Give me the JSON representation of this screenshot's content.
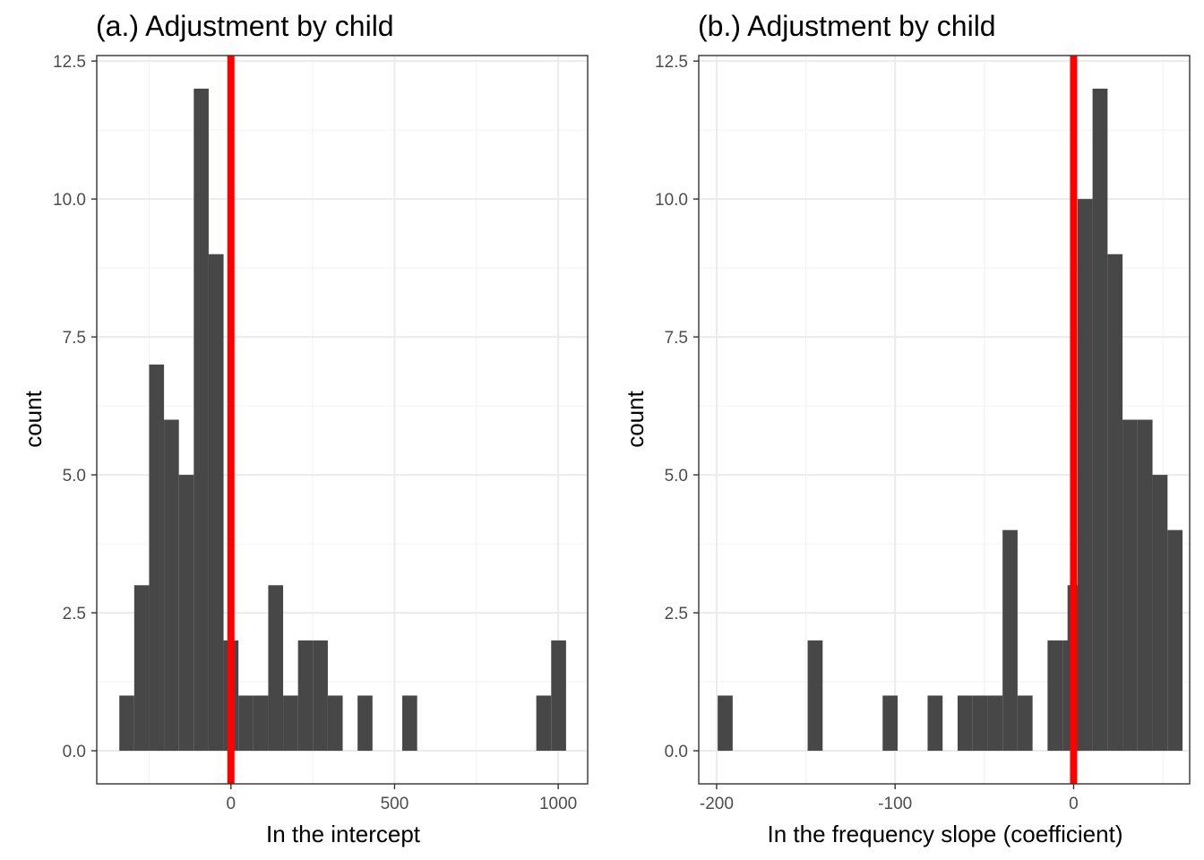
{
  "chart_data": [
    {
      "type": "bar",
      "subtype": "histogram",
      "title": "(a.) Adjustment by child",
      "xlabel": "In the intercept",
      "ylabel": "count",
      "xlim": [
        -410,
        1090
      ],
      "ylim": [
        -0.6,
        12.6
      ],
      "xticks": [
        {
          "value": 0,
          "label": "0"
        },
        {
          "value": 500,
          "label": "500"
        },
        {
          "value": 1000,
          "label": "1000"
        }
      ],
      "yticks": [
        {
          "value": 0,
          "label": "0.0"
        },
        {
          "value": 2.5,
          "label": "2.5"
        },
        {
          "value": 5,
          "label": "5.0"
        },
        {
          "value": 7.5,
          "label": "7.5"
        },
        {
          "value": 10,
          "label": "10.0"
        },
        {
          "value": 12.5,
          "label": "12.5"
        }
      ],
      "bin_width": 45.5,
      "bins": [
        {
          "x0": -341,
          "count": 1
        },
        {
          "x0": -295.5,
          "count": 3
        },
        {
          "x0": -250,
          "count": 7
        },
        {
          "x0": -204.5,
          "count": 6
        },
        {
          "x0": -159,
          "count": 5
        },
        {
          "x0": -113.5,
          "count": 12
        },
        {
          "x0": -68,
          "count": 9
        },
        {
          "x0": -22.5,
          "count": 2
        },
        {
          "x0": 23,
          "count": 1
        },
        {
          "x0": 68.5,
          "count": 1
        },
        {
          "x0": 114,
          "count": 3
        },
        {
          "x0": 159.5,
          "count": 1
        },
        {
          "x0": 205,
          "count": 2
        },
        {
          "x0": 250.5,
          "count": 2
        },
        {
          "x0": 296,
          "count": 1
        },
        {
          "x0": 387,
          "count": 1
        },
        {
          "x0": 523.5,
          "count": 1
        },
        {
          "x0": 933,
          "count": 1
        },
        {
          "x0": 978.5,
          "count": 2
        }
      ],
      "vline": {
        "x": 0,
        "color": "#ff0000"
      },
      "bar_color": "#474747",
      "grid": true
    },
    {
      "type": "bar",
      "subtype": "histogram",
      "title": "(b.) Adjustment by child",
      "xlabel": "In the frequency slope (coefficient)",
      "ylabel": "count",
      "xlim": [
        -210,
        65
      ],
      "ylim": [
        -0.6,
        12.6
      ],
      "xticks": [
        {
          "value": -200,
          "label": "-200"
        },
        {
          "value": -100,
          "label": "-100"
        },
        {
          "value": 0,
          "label": "0"
        }
      ],
      "yticks": [
        {
          "value": 0,
          "label": "0.0"
        },
        {
          "value": 2.5,
          "label": "2.5"
        },
        {
          "value": 5,
          "label": "5.0"
        },
        {
          "value": 7.5,
          "label": "7.5"
        },
        {
          "value": 10,
          "label": "10.0"
        },
        {
          "value": 12.5,
          "label": "12.5"
        }
      ],
      "bin_width": 8.4,
      "bins": [
        {
          "x0": -199.4,
          "count": 1
        },
        {
          "x0": -149.0,
          "count": 2
        },
        {
          "x0": -107.0,
          "count": 1
        },
        {
          "x0": -81.8,
          "count": 1
        },
        {
          "x0": -65.0,
          "count": 1
        },
        {
          "x0": -56.6,
          "count": 1
        },
        {
          "x0": -48.2,
          "count": 1
        },
        {
          "x0": -39.8,
          "count": 4
        },
        {
          "x0": -31.4,
          "count": 1
        },
        {
          "x0": -14.6,
          "count": 2
        },
        {
          "x0": -6.2,
          "count": 2
        },
        {
          "x0": -3.4,
          "count": 3
        },
        {
          "x0": 2.2,
          "count": 10
        },
        {
          "x0": 10.6,
          "count": 12
        },
        {
          "x0": 19.0,
          "count": 9
        },
        {
          "x0": 27.4,
          "count": 6
        },
        {
          "x0": 35.8,
          "count": 6
        },
        {
          "x0": 44.2,
          "count": 5
        },
        {
          "x0": 52.6,
          "count": 4
        }
      ],
      "vline": {
        "x": 0,
        "color": "#ff0000"
      },
      "bar_color": "#474747",
      "grid": true
    }
  ]
}
